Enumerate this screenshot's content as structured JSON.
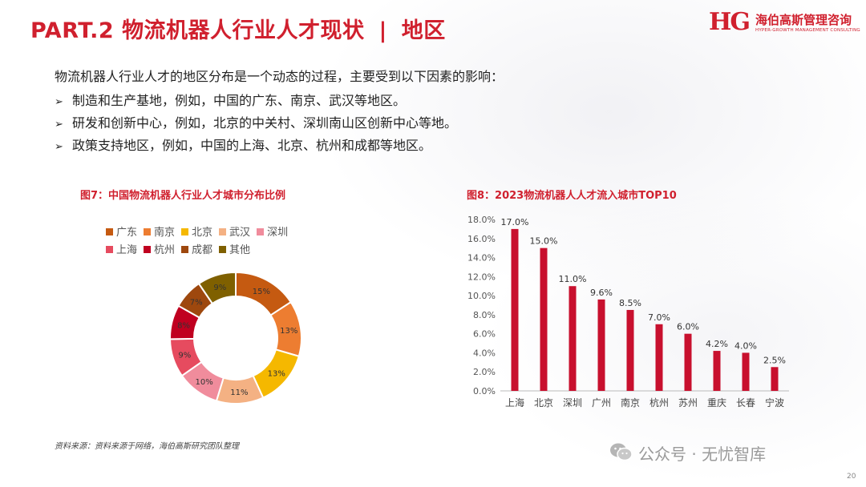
{
  "header": {
    "part": "PART.2",
    "title": "物流机器人行业人才现状",
    "separator": "|",
    "subtitle": "地区"
  },
  "logo": {
    "mark": "HG",
    "name": "海伯高斯管理咨询",
    "tagline": "HYPER-GROWTH MANAGEMENT CONSULTING"
  },
  "intro": "物流机器人行业人才的地区分布是一个动态的过程，主要受到以下因素的影响：",
  "bullets": [
    "制造和生产基地，例如，中国的广东、南京、武汉等地区。",
    "研发和创新中心，例如，北京的中关村、深圳南山区创新中心等地。",
    "政策支持地区，例如，中国的上海、北京、杭州和成都等地区。"
  ],
  "bullet_symbol": "➢",
  "source": "资料来源：资料来源于网络，海伯高斯研究团队整理",
  "watermark": "公众号 · 无忧智库",
  "page_number": "20",
  "chart_data": [
    {
      "type": "pie",
      "title": "图7：中国物流机器人行业人才城市分布比例",
      "donut": true,
      "legend_position": "top",
      "categories": [
        "广东",
        "南京",
        "北京",
        "武汉",
        "深圳",
        "上海",
        "杭州",
        "成都",
        "其他"
      ],
      "values": [
        15,
        13,
        13,
        11,
        10,
        9,
        8,
        7,
        9
      ],
      "labels": [
        "15%",
        "13%",
        "13%",
        "11%",
        "10%",
        "9%",
        "8%",
        "7%",
        "9%"
      ],
      "colors": [
        "#c55a11",
        "#ed7d31",
        "#f5b800",
        "#f4b183",
        "#f08c9c",
        "#e64b5f",
        "#c00020",
        "#9e480e",
        "#7f6000"
      ]
    },
    {
      "type": "bar",
      "title": "图8：2023物流机器人人才流入城市TOP10",
      "categories": [
        "上海",
        "北京",
        "深圳",
        "广州",
        "南京",
        "杭州",
        "苏州",
        "重庆",
        "长春",
        "宁波"
      ],
      "values": [
        17.0,
        15.0,
        11.0,
        9.6,
        8.5,
        7.0,
        6.0,
        4.2,
        4.0,
        2.5
      ],
      "labels": [
        "17.0%",
        "15.0%",
        "11.0%",
        "9.6%",
        "8.5%",
        "7.0%",
        "6.0%",
        "4.2%",
        "4.0%",
        "2.5%"
      ],
      "ylim": [
        0,
        18
      ],
      "yticks": [
        "0.0%",
        "2.0%",
        "4.0%",
        "6.0%",
        "8.0%",
        "10.0%",
        "12.0%",
        "14.0%",
        "16.0%",
        "18.0%"
      ],
      "grid": false,
      "color": "#c8102e"
    }
  ]
}
